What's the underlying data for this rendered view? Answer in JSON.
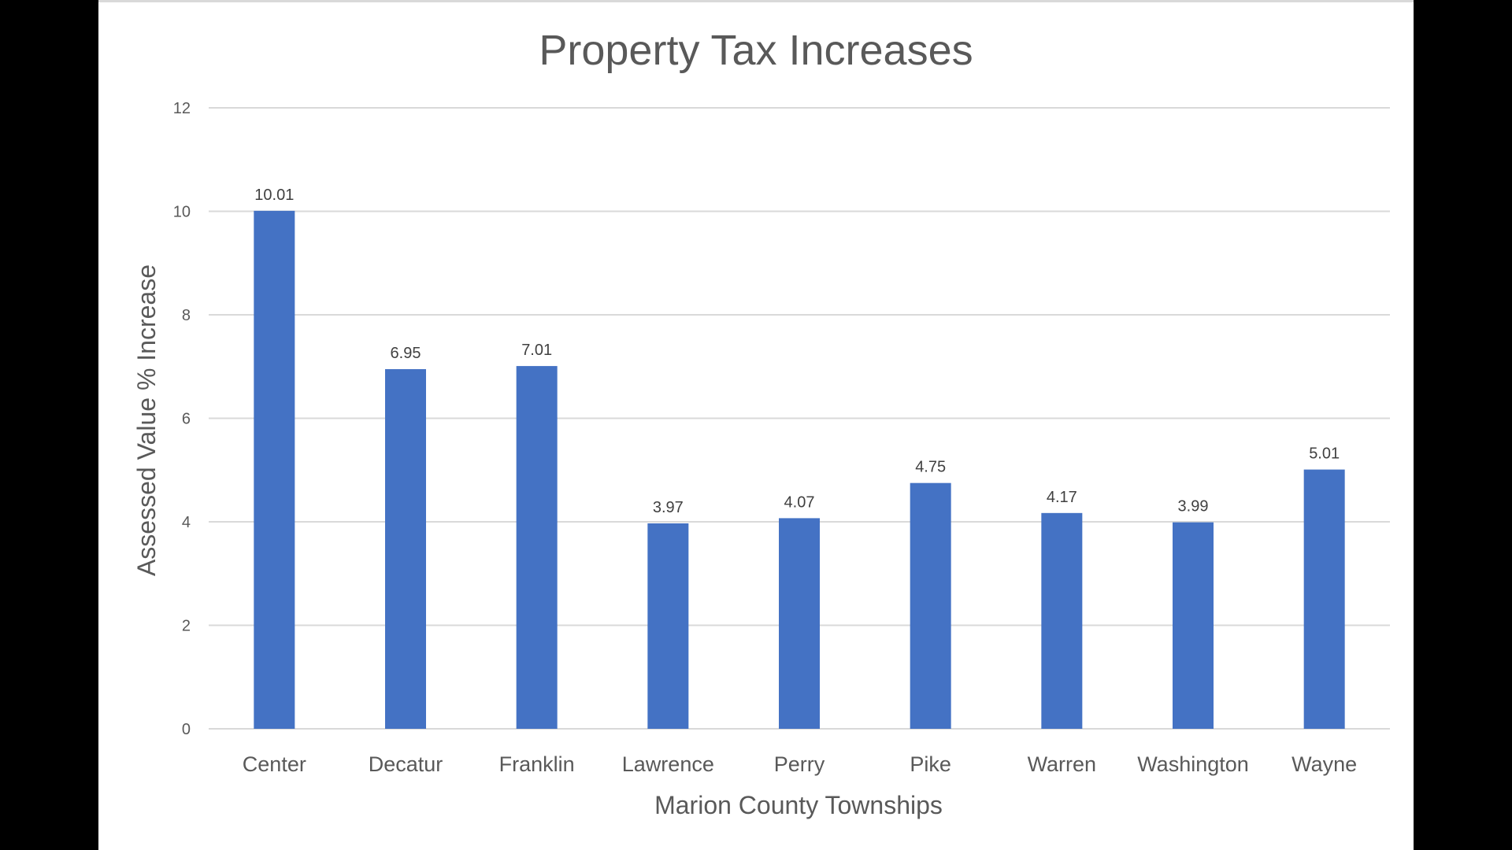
{
  "chart_data": {
    "type": "bar",
    "title": "Property Tax Increases",
    "xlabel": "Marion County Townships",
    "ylabel": "Assessed Value % Increase",
    "categories": [
      "Center",
      "Decatur",
      "Franklin",
      "Lawrence",
      "Perry",
      "Pike",
      "Warren",
      "Washington",
      "Wayne"
    ],
    "values": [
      10.01,
      6.95,
      7.01,
      3.97,
      4.07,
      4.75,
      4.17,
      3.99,
      5.01
    ],
    "data_labels": [
      "10.01",
      "6.95",
      "7.01",
      "3.97",
      "4.07",
      "4.75",
      "4.17",
      "3.99",
      "5.01"
    ],
    "ylim": [
      0,
      12
    ],
    "yticks": [
      "0",
      "2",
      "4",
      "6",
      "8",
      "10",
      "12"
    ],
    "grid": true,
    "legend": "none",
    "bar_color": "#4472C4"
  }
}
